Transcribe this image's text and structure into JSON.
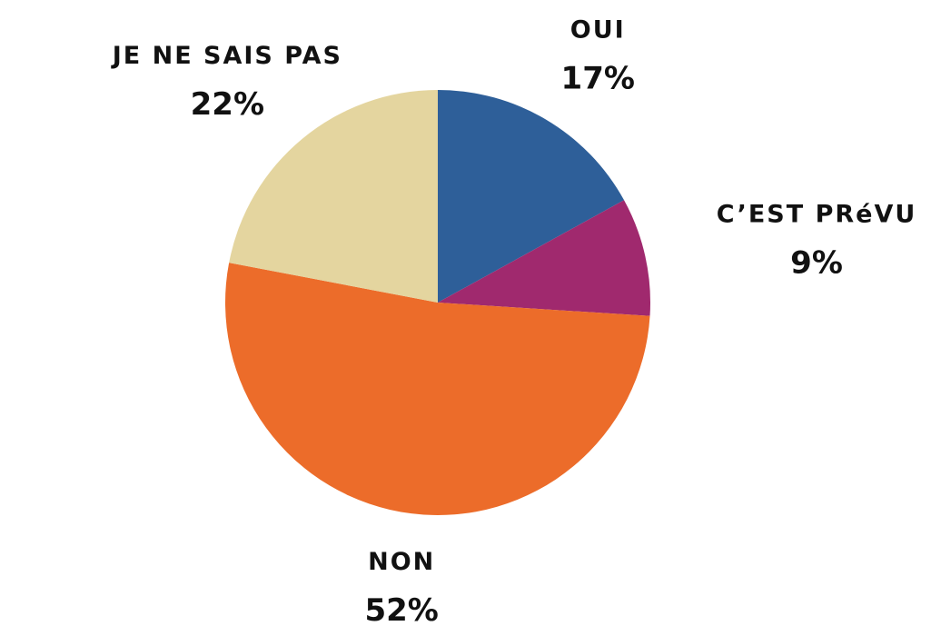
{
  "chart_data": {
    "type": "pie",
    "categories": [
      "OUI",
      "C’EST PRéVU",
      "NON",
      "JE NE SAIS PAS"
    ],
    "values": [
      17,
      9,
      52,
      22
    ],
    "value_labels": [
      "17%",
      "9%",
      "52%",
      "22%"
    ],
    "colors": [
      "#2e5f99",
      "#a0296e",
      "#ec6c2a",
      "#e4d59f"
    ]
  }
}
